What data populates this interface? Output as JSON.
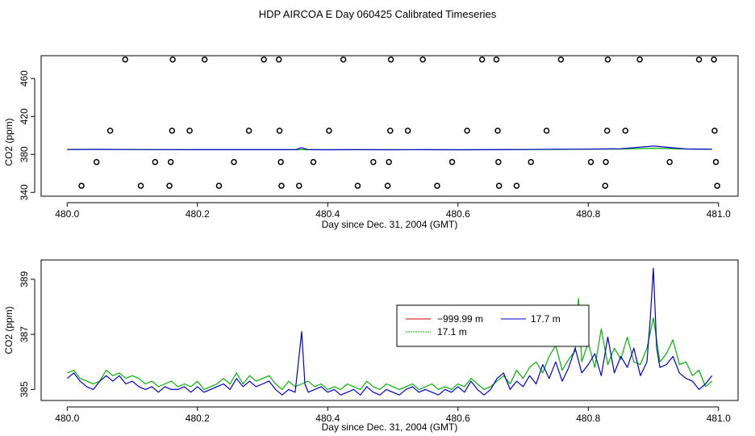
{
  "figure": {
    "title": "HDP AIRCOA E  Day 060425  Calibrated Timeseries"
  },
  "colors": {
    "red": "#cc0000",
    "green": "#00b400",
    "blue": "#0000cc",
    "axis": "#000000"
  },
  "chart_data": [
    {
      "type": "scatter",
      "title": "",
      "xlabel": "Day since Dec. 31, 2004 (GMT)",
      "ylabel": "CO2 (ppm)",
      "xlim": [
        479.96,
        481.03
      ],
      "ylim": [
        336,
        484
      ],
      "xticks": [
        "480.0",
        "480.2",
        "480.4",
        "480.6",
        "480.8",
        "481.0"
      ],
      "yticks": [
        "340",
        "380",
        "420",
        "460"
      ],
      "grid": false,
      "points": [
        {
          "x": 480.089,
          "y": 480
        },
        {
          "x": 480.162,
          "y": 480
        },
        {
          "x": 480.211,
          "y": 480
        },
        {
          "x": 480.302,
          "y": 480
        },
        {
          "x": 480.325,
          "y": 480
        },
        {
          "x": 480.424,
          "y": 480
        },
        {
          "x": 480.497,
          "y": 480
        },
        {
          "x": 480.546,
          "y": 480
        },
        {
          "x": 480.637,
          "y": 480
        },
        {
          "x": 480.659,
          "y": 480
        },
        {
          "x": 480.758,
          "y": 480
        },
        {
          "x": 480.83,
          "y": 480
        },
        {
          "x": 480.879,
          "y": 480
        },
        {
          "x": 480.97,
          "y": 480
        },
        {
          "x": 480.993,
          "y": 480
        },
        {
          "x": 480.066,
          "y": 405
        },
        {
          "x": 480.161,
          "y": 405
        },
        {
          "x": 480.188,
          "y": 405
        },
        {
          "x": 480.279,
          "y": 405
        },
        {
          "x": 480.326,
          "y": 405
        },
        {
          "x": 480.402,
          "y": 405
        },
        {
          "x": 480.496,
          "y": 405
        },
        {
          "x": 480.523,
          "y": 405
        },
        {
          "x": 480.614,
          "y": 405
        },
        {
          "x": 480.661,
          "y": 405
        },
        {
          "x": 480.736,
          "y": 405
        },
        {
          "x": 480.829,
          "y": 405
        },
        {
          "x": 480.857,
          "y": 405
        },
        {
          "x": 480.994,
          "y": 405
        },
        {
          "x": 480.045,
          "y": 372
        },
        {
          "x": 480.135,
          "y": 372
        },
        {
          "x": 480.159,
          "y": 372
        },
        {
          "x": 480.256,
          "y": 372
        },
        {
          "x": 480.328,
          "y": 372
        },
        {
          "x": 480.378,
          "y": 372
        },
        {
          "x": 480.47,
          "y": 372
        },
        {
          "x": 480.494,
          "y": 372
        },
        {
          "x": 480.591,
          "y": 372
        },
        {
          "x": 480.662,
          "y": 372
        },
        {
          "x": 480.712,
          "y": 372
        },
        {
          "x": 480.804,
          "y": 372
        },
        {
          "x": 480.827,
          "y": 372
        },
        {
          "x": 480.925,
          "y": 372
        },
        {
          "x": 480.996,
          "y": 372
        },
        {
          "x": 480.022,
          "y": 347
        },
        {
          "x": 480.113,
          "y": 347
        },
        {
          "x": 480.157,
          "y": 347
        },
        {
          "x": 480.233,
          "y": 347
        },
        {
          "x": 480.329,
          "y": 347
        },
        {
          "x": 480.356,
          "y": 347
        },
        {
          "x": 480.446,
          "y": 347
        },
        {
          "x": 480.492,
          "y": 347
        },
        {
          "x": 480.568,
          "y": 347
        },
        {
          "x": 480.663,
          "y": 347
        },
        {
          "x": 480.69,
          "y": 347
        },
        {
          "x": 480.826,
          "y": 347
        },
        {
          "x": 480.998,
          "y": 347
        }
      ],
      "series": [
        {
          "color": "#00b400",
          "x": [
            480.0,
            480.05,
            480.1,
            480.15,
            480.2,
            480.25,
            480.3,
            480.35,
            480.4,
            480.45,
            480.5,
            480.55,
            480.6,
            480.65,
            480.7,
            480.75,
            480.8,
            480.85,
            480.9,
            480.95,
            480.99
          ],
          "y": [
            385.3,
            385.3,
            385.2,
            385.1,
            385.0,
            385.0,
            385.1,
            385.0,
            385.0,
            385.0,
            385.0,
            385.0,
            384.9,
            385.0,
            385.1,
            385.2,
            385.5,
            385.7,
            386.5,
            385.8,
            385.5
          ]
        },
        {
          "color": "#0000cc",
          "x": [
            480.0,
            480.05,
            480.1,
            480.15,
            480.2,
            480.25,
            480.3,
            480.35,
            480.36,
            480.37,
            480.4,
            480.45,
            480.5,
            480.55,
            480.6,
            480.65,
            480.7,
            480.75,
            480.8,
            480.85,
            480.9,
            480.95,
            480.99
          ],
          "y": [
            385.2,
            385.3,
            385.2,
            385.1,
            385.0,
            385.0,
            385.0,
            385.0,
            387.0,
            385.0,
            384.9,
            385.0,
            384.9,
            385.0,
            384.9,
            385.0,
            385.2,
            385.5,
            385.6,
            386.0,
            388.8,
            385.8,
            385.4
          ]
        }
      ]
    },
    {
      "type": "line",
      "title": "",
      "xlabel": "Day since Dec. 31, 2004 (GMT)",
      "ylabel": "CO2 (ppm)",
      "xlim": [
        479.96,
        481.03
      ],
      "ylim": [
        384.6,
        389.7
      ],
      "xticks": [
        "480.0",
        "480.2",
        "480.4",
        "480.6",
        "480.8",
        "481.0"
      ],
      "yticks": [
        "385",
        "387",
        "389"
      ],
      "grid": false,
      "legend": {
        "placement": "center-right",
        "entries": [
          {
            "label": "−999.99 m",
            "color": "#cc0000"
          },
          {
            "label": "17.7 m",
            "color": "#0000cc"
          },
          {
            "label": "17.1 m",
            "color": "#00b400"
          }
        ]
      },
      "series": [
        {
          "name": "17.1 m",
          "color": "#00b400",
          "x": [
            480.0,
            480.01,
            480.02,
            480.03,
            480.04,
            480.05,
            480.06,
            480.07,
            480.08,
            480.09,
            480.1,
            480.11,
            480.12,
            480.13,
            480.14,
            480.15,
            480.16,
            480.17,
            480.18,
            480.19,
            480.2,
            480.21,
            480.22,
            480.23,
            480.24,
            480.25,
            480.26,
            480.27,
            480.28,
            480.29,
            480.3,
            480.31,
            480.32,
            480.33,
            480.34,
            480.35,
            480.36,
            480.37,
            480.38,
            480.39,
            480.4,
            480.41,
            480.42,
            480.43,
            480.44,
            480.45,
            480.46,
            480.47,
            480.48,
            480.49,
            480.5,
            480.51,
            480.52,
            480.53,
            480.54,
            480.55,
            480.56,
            480.57,
            480.58,
            480.59,
            480.6,
            480.61,
            480.62,
            480.63,
            480.64,
            480.65,
            480.66,
            480.67,
            480.68,
            480.69,
            480.7,
            480.71,
            480.72,
            480.73,
            480.74,
            480.75,
            480.76,
            480.77,
            480.78,
            480.785,
            480.79,
            480.8,
            480.81,
            480.82,
            480.83,
            480.84,
            480.85,
            480.86,
            480.87,
            480.88,
            480.89,
            480.9,
            480.91,
            480.92,
            480.93,
            480.94,
            480.95,
            480.96,
            480.97,
            480.98,
            480.99
          ],
          "y": [
            385.6,
            385.7,
            385.4,
            385.3,
            385.2,
            385.3,
            385.7,
            385.5,
            385.6,
            385.4,
            385.5,
            385.4,
            385.2,
            385.3,
            385.1,
            385.2,
            385.3,
            385.1,
            385.2,
            385.1,
            385.3,
            385.0,
            385.1,
            385.2,
            385.4,
            385.2,
            385.6,
            385.2,
            385.5,
            385.3,
            385.4,
            385.5,
            385.2,
            385.0,
            385.3,
            385.1,
            385.2,
            385.3,
            385.1,
            385.2,
            385.0,
            385.1,
            385.0,
            385.2,
            385.1,
            385.0,
            385.3,
            385.1,
            385.0,
            385.2,
            385.1,
            385.0,
            385.1,
            385.2,
            385.0,
            385.1,
            385.2,
            385.0,
            385.1,
            385.0,
            385.2,
            385.1,
            385.4,
            385.2,
            385.0,
            385.1,
            385.3,
            385.5,
            385.2,
            385.7,
            385.4,
            385.8,
            386.0,
            385.6,
            386.2,
            386.6,
            385.7,
            386.1,
            386.4,
            388.3,
            386.0,
            386.7,
            385.8,
            387.2,
            385.9,
            386.5,
            386.1,
            386.9,
            386.0,
            385.9,
            386.5,
            387.6,
            386.0,
            386.3,
            386.8,
            385.9,
            386.0,
            385.5,
            385.7,
            385.1,
            385.3
          ]
        },
        {
          "name": "17.7 m",
          "color": "#0000cc",
          "x": [
            480.0,
            480.01,
            480.02,
            480.03,
            480.04,
            480.05,
            480.06,
            480.07,
            480.08,
            480.09,
            480.1,
            480.11,
            480.12,
            480.13,
            480.14,
            480.15,
            480.16,
            480.17,
            480.18,
            480.19,
            480.2,
            480.21,
            480.22,
            480.23,
            480.24,
            480.25,
            480.26,
            480.27,
            480.28,
            480.29,
            480.3,
            480.31,
            480.32,
            480.33,
            480.34,
            480.35,
            480.355,
            480.36,
            480.365,
            480.37,
            480.38,
            480.39,
            480.4,
            480.41,
            480.42,
            480.43,
            480.44,
            480.45,
            480.46,
            480.47,
            480.48,
            480.49,
            480.5,
            480.51,
            480.52,
            480.53,
            480.54,
            480.55,
            480.56,
            480.57,
            480.58,
            480.59,
            480.6,
            480.61,
            480.62,
            480.63,
            480.64,
            480.65,
            480.66,
            480.67,
            480.68,
            480.69,
            480.7,
            480.71,
            480.72,
            480.73,
            480.74,
            480.75,
            480.76,
            480.77,
            480.78,
            480.79,
            480.8,
            480.81,
            480.82,
            480.83,
            480.84,
            480.85,
            480.86,
            480.87,
            480.88,
            480.89,
            480.895,
            480.9,
            480.905,
            480.91,
            480.92,
            480.93,
            480.94,
            480.95,
            480.96,
            480.97,
            480.98,
            480.99
          ],
          "y": [
            385.4,
            385.6,
            385.3,
            385.1,
            385.0,
            385.3,
            385.5,
            385.3,
            385.5,
            385.2,
            385.3,
            385.1,
            385.0,
            385.1,
            384.9,
            385.1,
            385.0,
            385.0,
            385.1,
            384.9,
            385.1,
            384.9,
            385.0,
            385.1,
            385.2,
            385.0,
            385.4,
            385.1,
            385.3,
            385.1,
            385.2,
            385.3,
            385.0,
            384.8,
            385.0,
            384.9,
            386.0,
            387.1,
            385.2,
            384.9,
            385.0,
            385.1,
            384.9,
            385.0,
            384.8,
            384.9,
            385.0,
            384.8,
            385.1,
            384.9,
            384.8,
            385.0,
            384.9,
            384.8,
            385.0,
            385.1,
            384.9,
            385.0,
            384.9,
            384.8,
            385.0,
            384.9,
            385.1,
            384.9,
            385.3,
            385.0,
            384.8,
            385.0,
            385.4,
            385.6,
            385.0,
            385.3,
            385.1,
            385.5,
            385.2,
            385.9,
            385.4,
            386.0,
            385.3,
            385.8,
            386.5,
            385.6,
            385.9,
            386.3,
            385.5,
            386.9,
            385.6,
            386.2,
            385.8,
            386.5,
            385.5,
            386.0,
            387.5,
            389.4,
            386.5,
            385.8,
            385.9,
            386.2,
            385.6,
            385.4,
            385.3,
            385.0,
            385.2,
            385.5
          ]
        }
      ]
    }
  ]
}
